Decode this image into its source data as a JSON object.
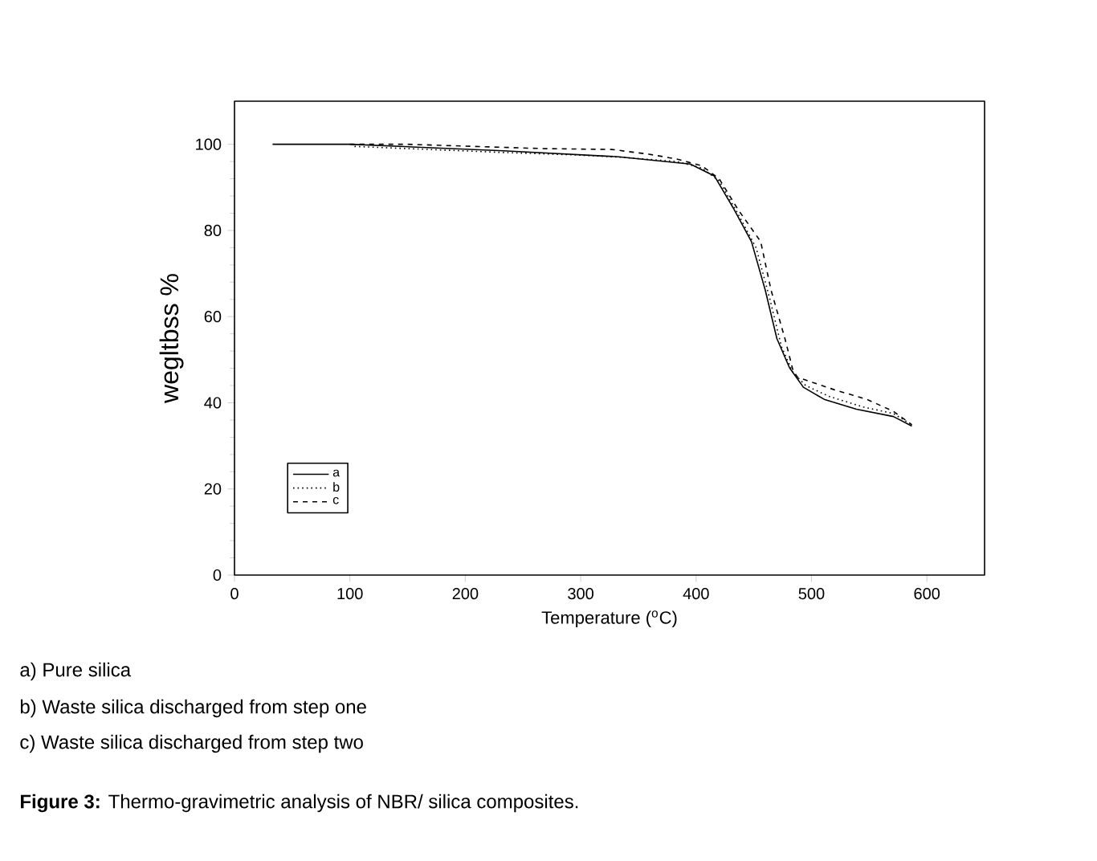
{
  "chart_data": {
    "type": "line",
    "xlabel": "Temperature ($^{o}$C)",
    "ylabel": "wegltbss %",
    "xlim": [
      0,
      650
    ],
    "ylim": [
      0,
      110
    ],
    "xticks": [
      0,
      100,
      200,
      300,
      400,
      500,
      600
    ],
    "yticks": [
      0,
      20,
      40,
      60,
      80,
      100
    ],
    "legend": "bottom left",
    "grid": false,
    "marker": "none",
    "series": [
      {
        "name": "a",
        "color": "#000000",
        "line_style": "solid",
        "x": [
          33,
          100,
          233,
          333,
          395,
          416,
          432,
          448,
          460,
          470,
          481,
          493,
          511,
          539,
          571,
          587
        ],
        "values": [
          100,
          100,
          98.5,
          97.1,
          95.4,
          92.6,
          85.3,
          77.4,
          66.1,
          54.9,
          48.1,
          43.6,
          40.8,
          38.5,
          36.8,
          34.6
        ]
      },
      {
        "name": "b",
        "color": "#000000",
        "line_style": "dotted",
        "x": [
          104,
          233,
          298,
          335,
          383,
          405,
          420,
          436,
          452,
          464,
          474,
          484,
          495,
          515,
          545,
          571,
          585
        ],
        "values": [
          99.5,
          98.1,
          97.5,
          97.0,
          96.0,
          94.5,
          91.5,
          84,
          76,
          64,
          53,
          47,
          44,
          41.5,
          39,
          37.5,
          35.2
        ]
      },
      {
        "name": "c",
        "color": "#000000",
        "line_style": "dashed",
        "x": [
          100,
          150,
          267,
          327,
          359,
          383,
          405,
          420,
          436,
          456,
          465,
          477,
          484,
          488,
          520,
          548,
          571,
          587
        ],
        "values": [
          100,
          100,
          99.0,
          98.8,
          97.7,
          96.6,
          95,
          92,
          85,
          77.4,
          66.1,
          54.9,
          47.5,
          45.9,
          43.0,
          40.8,
          38.0,
          34.9
        ]
      }
    ],
    "annotations": [
      "a) Pure silica",
      "b) Waste silica discharged from step one",
      "c) Waste silica discharged from step two",
      "**Figure 3:** Thermo-gravimetric analysis of NBR/ silica composites."
    ]
  }
}
